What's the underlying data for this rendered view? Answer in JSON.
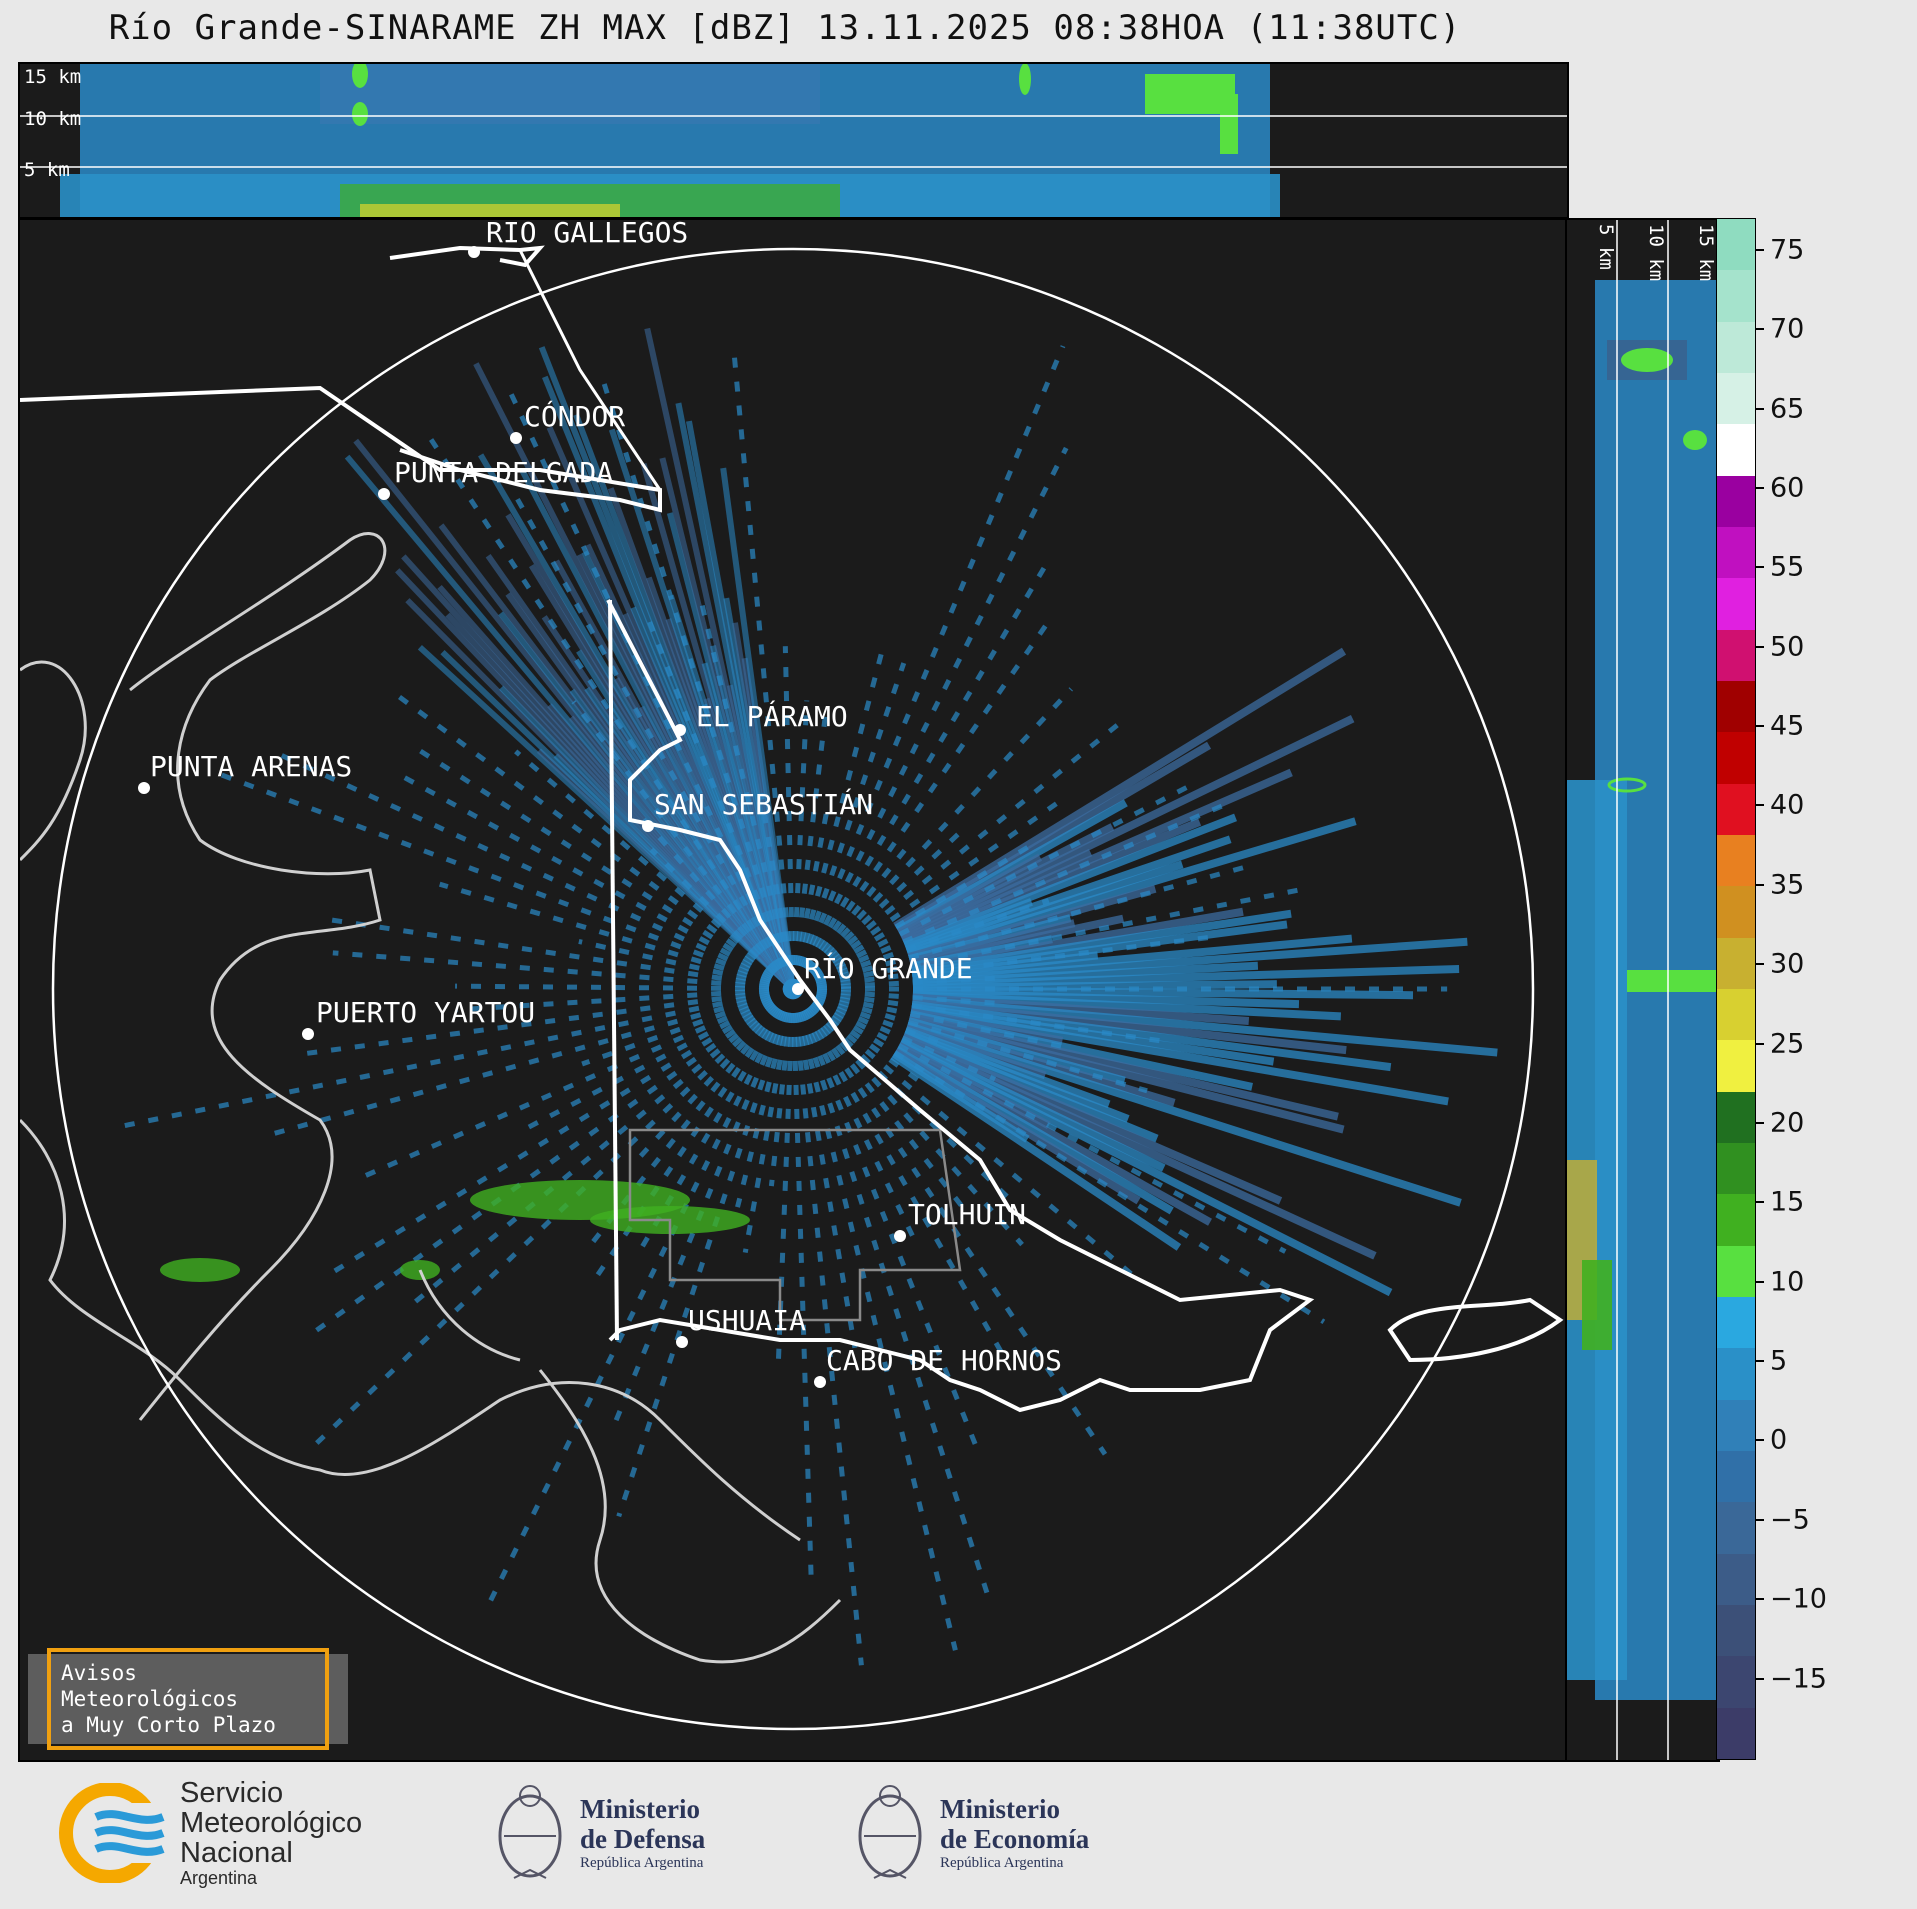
{
  "title": "Río Grande-SINARAME ZH MAX [dBZ] 13.11.2025 08:38HOA (11:38UTC)",
  "top_panel": {
    "height_labels": [
      "15 km",
      "10 km",
      "5 km"
    ]
  },
  "right_panel": {
    "height_labels": [
      "5 km",
      "10 km",
      "15 km"
    ]
  },
  "cities": [
    {
      "name": "RÍO GALLEGOS"
    },
    {
      "name": "CÓNDOR"
    },
    {
      "name": "PUNTA DELGADA"
    },
    {
      "name": "EL PÁRAMO"
    },
    {
      "name": "PUNTA ARENAS"
    },
    {
      "name": "SAN SEBASTIÁN"
    },
    {
      "name": "RÍO GRANDE"
    },
    {
      "name": "PUERTO YARTOU"
    },
    {
      "name": "TOLHUIN"
    },
    {
      "name": "USHUAIA"
    },
    {
      "name": "CABO DE HORNOS"
    }
  ],
  "colorbar": {
    "unit": "dBZ",
    "range": [
      -20,
      77
    ],
    "ticks": [
      "75",
      "70",
      "65",
      "60",
      "55",
      "50",
      "45",
      "40",
      "35",
      "30",
      "25",
      "20",
      "15",
      "10",
      "5",
      "0",
      "−5",
      "−10",
      "−15"
    ],
    "colors_top_to_bottom": [
      "#8fdcc0",
      "#a5e3cc",
      "#bde9d8",
      "#d6f1e6",
      "#ffffff",
      "#9a00a0",
      "#c010c0",
      "#e020e0",
      "#d01070",
      "#a00000",
      "#c00000",
      "#e01020",
      "#e88020",
      "#d09020",
      "#c8b030",
      "#d8d030",
      "#f0f040",
      "#207020",
      "#309020",
      "#40b020",
      "#58e040",
      "#2aa8e0",
      "#2a90c8",
      "#3080b8",
      "#3070a8",
      "#3a6898",
      "#3c5c88",
      "#3c5078",
      "#3c4670",
      "#3c3c68"
    ]
  },
  "avisos": {
    "line1": "Avisos Meteorológicos",
    "line2": "a Muy Corto Plazo"
  },
  "logos": {
    "smn": {
      "line1": "Servicio",
      "line2": "Meteorológico",
      "line3": "Nacional",
      "line4": "Argentina"
    },
    "defensa": {
      "line1": "Ministerio",
      "line2": "de Defensa",
      "line3": "República Argentina"
    },
    "economia": {
      "line1": "Ministerio",
      "line2": "de Economía",
      "line3": "República Argentina"
    }
  },
  "colors": {
    "background": "#1b1b1b",
    "coast": "#d0d0d0",
    "border": "#ffffff",
    "echo_main": "#2a8ac8",
    "echo_weak": "#3c5c90",
    "echo_green": "#58e040"
  }
}
